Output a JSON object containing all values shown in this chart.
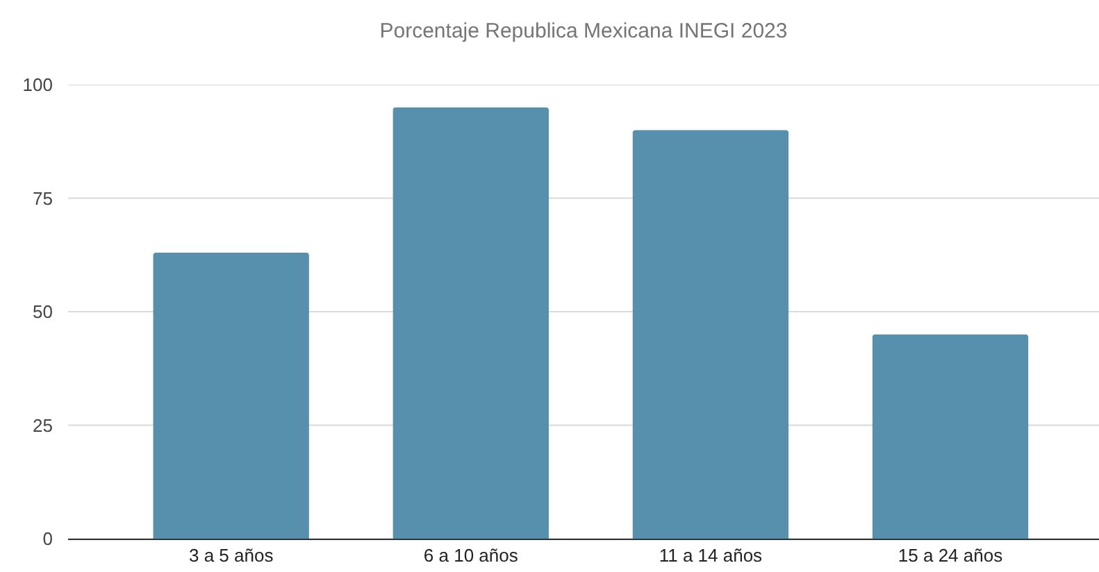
{
  "chart_data": {
    "type": "bar",
    "title": "Porcentaje Republica Mexicana INEGI 2023",
    "categories": [
      "3 a 5 años",
      "6 a 10 años",
      "11 a 14 años",
      "15 a 24 años"
    ],
    "values": [
      63,
      95,
      90,
      45
    ],
    "color": "#5790ad",
    "ylim": [
      0,
      100
    ],
    "yticks": [
      0,
      25,
      50,
      75,
      100
    ],
    "grid": "y"
  }
}
